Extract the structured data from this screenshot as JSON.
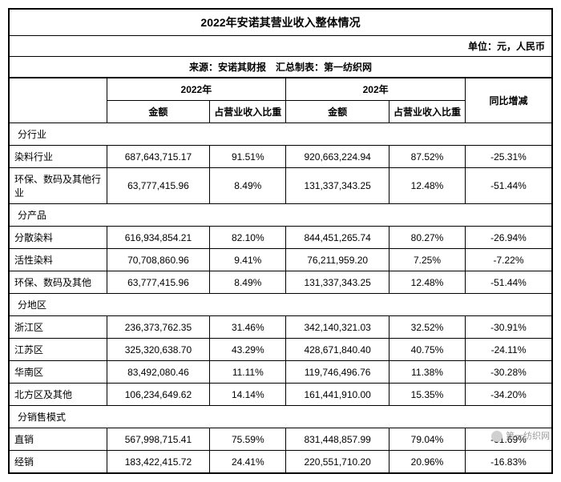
{
  "title": "2022年安诺其营业收入整体情况",
  "unit": "单位：元，人民币",
  "source": "来源：安诺其财报　汇总制表：第一纺织网",
  "headers": {
    "year2022": "2022年",
    "year2021": "202年",
    "amount": "金额",
    "pct": "占营业收入比重",
    "yoy": "同比增减"
  },
  "sections": {
    "industry": "分行业",
    "product": "分产品",
    "region": "分地区",
    "sales": "分销售模式"
  },
  "rows": {
    "r1": {
      "label": "染料行业",
      "amt22": "687,643,715.17",
      "pct22": "91.51%",
      "amt21": "920,663,224.94",
      "pct21": "87.52%",
      "yoy": "-25.31%"
    },
    "r2": {
      "label": "环保、数码及其他行业",
      "amt22": "63,777,415.96",
      "pct22": "8.49%",
      "amt21": "131,337,343.25",
      "pct21": "12.48%",
      "yoy": "-51.44%"
    },
    "r3": {
      "label": "分散染料",
      "amt22": "616,934,854.21",
      "pct22": "82.10%",
      "amt21": "844,451,265.74",
      "pct21": "80.27%",
      "yoy": "-26.94%"
    },
    "r4": {
      "label": "活性染料",
      "amt22": "70,708,860.96",
      "pct22": "9.41%",
      "amt21": "76,211,959.20",
      "pct21": "7.25%",
      "yoy": "-7.22%"
    },
    "r5": {
      "label": "环保、数码及其他",
      "amt22": "63,777,415.96",
      "pct22": "8.49%",
      "amt21": "131,337,343.25",
      "pct21": "12.48%",
      "yoy": "-51.44%"
    },
    "r6": {
      "label": "浙江区",
      "amt22": "236,373,762.35",
      "pct22": "31.46%",
      "amt21": "342,140,321.03",
      "pct21": "32.52%",
      "yoy": "-30.91%"
    },
    "r7": {
      "label": "江苏区",
      "amt22": "325,320,638.70",
      "pct22": "43.29%",
      "amt21": "428,671,840.40",
      "pct21": "40.75%",
      "yoy": "-24.11%"
    },
    "r8": {
      "label": "华南区",
      "amt22": "83,492,080.46",
      "pct22": "11.11%",
      "amt21": "119,746,496.76",
      "pct21": "11.38%",
      "yoy": "-30.28%"
    },
    "r9": {
      "label": "北方区及其他",
      "amt22": "106,234,649.62",
      "pct22": "14.14%",
      "amt21": "161,441,910.00",
      "pct21": "15.35%",
      "yoy": "-34.20%"
    },
    "r10": {
      "label": "直销",
      "amt22": "567,998,715.41",
      "pct22": "75.59%",
      "amt21": "831,448,857.99",
      "pct21": "79.04%",
      "yoy": "-31.69%"
    },
    "r11": {
      "label": "经销",
      "amt22": "183,422,415.72",
      "pct22": "24.41%",
      "amt21": "220,551,710.20",
      "pct21": "20.96%",
      "yoy": "-16.83%"
    }
  },
  "watermark": "第一纺织网",
  "style": {
    "border_color": "#000000",
    "background": "#ffffff",
    "text_color": "#000000",
    "font_size_title": 14,
    "font_size_body": 12
  }
}
